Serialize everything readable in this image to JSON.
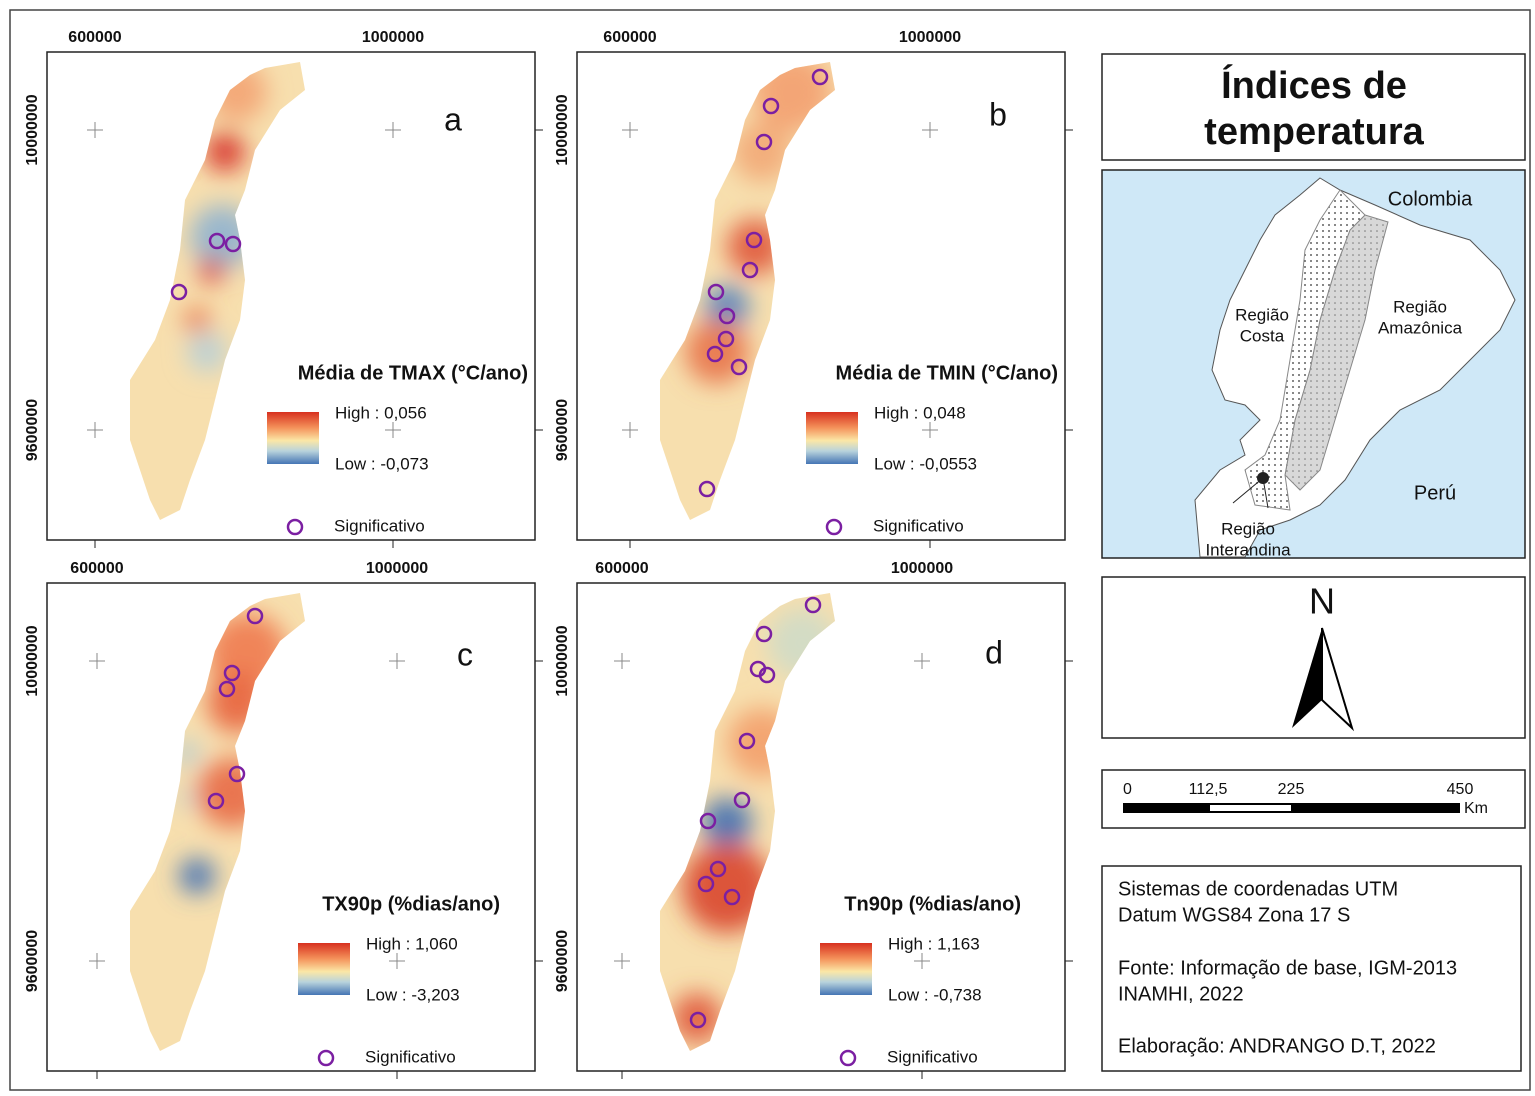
{
  "panels": [
    {
      "letter": "a",
      "x_ticks": [
        "600000",
        "1000000"
      ],
      "y_ticks": [
        "10000000",
        "9600000"
      ],
      "legend": {
        "title": "Média de TMAX (°C/ano)",
        "high": "High : 0,056",
        "low": "Low : -0,073",
        "significant": "Significativo"
      }
    },
    {
      "letter": "b",
      "x_ticks": [
        "600000",
        "1000000"
      ],
      "y_ticks": [
        "10000000",
        "9600000"
      ],
      "legend": {
        "title": "Média de TMIN (°C/ano)",
        "high": "High : 0,048",
        "low": "Low : -0,0553",
        "significant": "Significativo"
      }
    },
    {
      "letter": "c",
      "x_ticks": [
        "600000",
        "1000000"
      ],
      "y_ticks": [
        "10000000",
        "9600000"
      ],
      "legend": {
        "title": "TX90p (%dias/ano)",
        "high": "High : 1,060",
        "low": "Low : -3,203",
        "significant": "Significativo"
      }
    },
    {
      "letter": "d",
      "x_ticks": [
        "600000",
        "1000000"
      ],
      "y_ticks": [
        "10000000",
        "9600000"
      ],
      "legend": {
        "title": "Tn90p (%dias/ano)",
        "high": "High : 1,163",
        "low": "Low : -0,738",
        "significant": "Significativo"
      }
    }
  ],
  "title": [
    "Índices de",
    "temperatura"
  ],
  "inset_map": {
    "labels": [
      {
        "lines": [
          "Colombia"
        ]
      },
      {
        "lines": [
          "Região",
          "Costa"
        ]
      },
      {
        "lines": [
          "Região",
          "Amazônica"
        ]
      },
      {
        "lines": [
          "Perú"
        ]
      },
      {
        "lines": [
          "Região",
          "Interandina"
        ]
      }
    ]
  },
  "north": "N",
  "scale_bar": {
    "ticks": [
      "0",
      "112,5",
      "225",
      "450"
    ],
    "unit": "Km"
  },
  "info": [
    "Sistemas de coordenadas UTM",
    "Datum WGS84 Zona 17 S",
    "Fonte: Informação de base, IGM-2013",
    "INAMHI, 2022",
    "Elaboração: ANDRANGO D.T, 2022"
  ]
}
